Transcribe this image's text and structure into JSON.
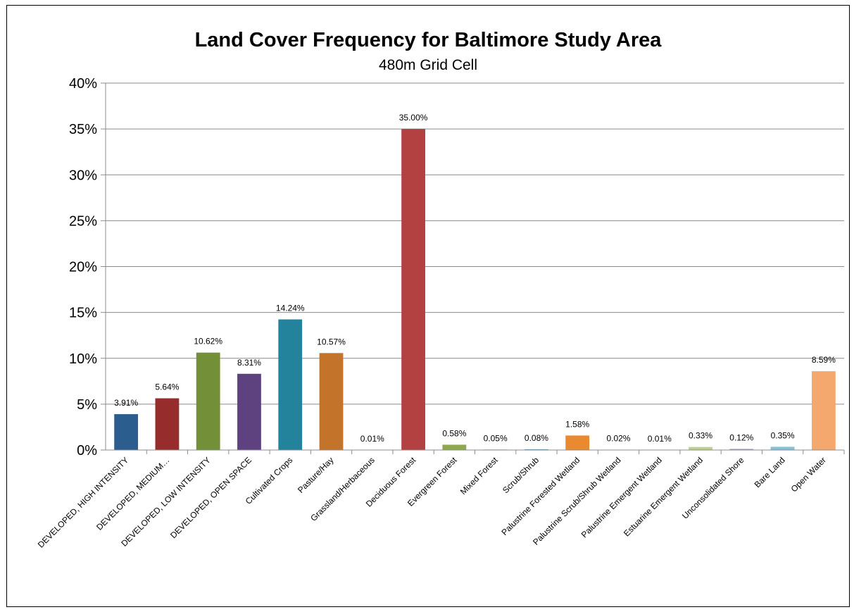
{
  "chart_data": {
    "type": "bar",
    "title": "Land Cover Frequency for Baltimore Study Area",
    "subtitle": "480m Grid Cell",
    "xlabel": "",
    "ylabel": "",
    "ylim": [
      0,
      40
    ],
    "yticks": [
      0,
      5,
      10,
      15,
      20,
      25,
      30,
      35,
      40
    ],
    "ytick_labels": [
      "0%",
      "5%",
      "10%",
      "15%",
      "20%",
      "25%",
      "30%",
      "35%",
      "40%"
    ],
    "grid": true,
    "legend": "none",
    "categories": [
      "DEVELOPED, HIGH INTENSITY",
      "DEVELOPED, MEDIUM…",
      "DEVELOPED, LOW INTENSITY",
      "DEVELOPED, OPEN SPACE",
      "Cultivated Crops",
      "Pasture/Hay",
      "Grassland/Herbaceous",
      "Deciduous Forest",
      "Evergreen Forest",
      "Mixed Forest",
      "Scrub/Shrub",
      "Palustrine Forested Wetland",
      "Palustrine Scrub/Shrub Wetland",
      "Palustrine Emergent Wetland",
      "Estuarine Emergent Wetland",
      "Unconsolidated Shore",
      "Bare Land",
      "Open Water"
    ],
    "values": [
      3.91,
      5.64,
      10.62,
      8.31,
      14.24,
      10.57,
      0.01,
      35.0,
      0.58,
      0.05,
      0.08,
      1.58,
      0.02,
      0.01,
      0.33,
      0.12,
      0.35,
      8.59
    ],
    "data_labels": [
      "3.91%",
      "5.64%",
      "10.62%",
      "8.31%",
      "14.24%",
      "10.57%",
      "0.01%",
      "35.00%",
      "0.58%",
      "0.05%",
      "0.08%",
      "1.58%",
      "0.02%",
      "0.01%",
      "0.33%",
      "0.12%",
      "0.35%",
      "8.59%"
    ],
    "colors": [
      "#2c5d8f",
      "#962c2c",
      "#738f38",
      "#5e4280",
      "#23839c",
      "#c3732a",
      "#9aa9c8",
      "#b34141",
      "#8ea84e",
      "#8573a3",
      "#4e9fb9",
      "#e98a30",
      "#a9bedb",
      "#d98c8a",
      "#bed08a",
      "#a99ac0",
      "#82c1d6",
      "#f5a86e"
    ]
  }
}
